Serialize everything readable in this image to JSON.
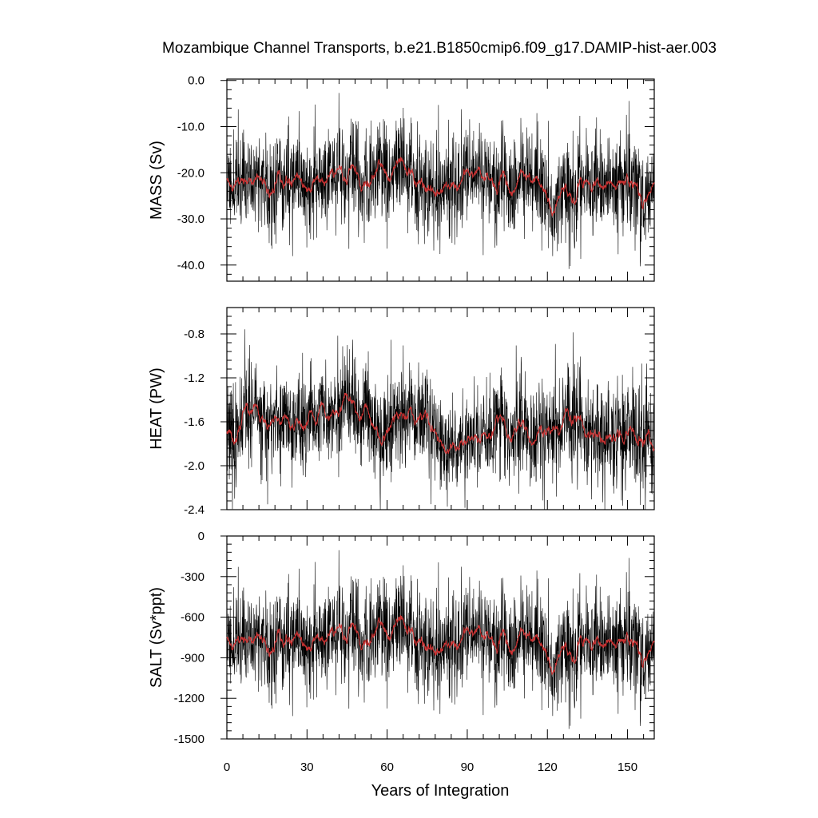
{
  "chart_data": {
    "title": "Mozambique Channel Transports, b.e21.B1850cmip6.f09_g17.DAMIP-hist-aer.003",
    "xlabel": "Years of Integration",
    "xlim": [
      0,
      160
    ],
    "xticks": [
      0,
      30,
      60,
      90,
      120,
      150
    ],
    "xtick_labels": [
      "0",
      "30",
      "60",
      "90",
      "120",
      "150"
    ],
    "line_colors": {
      "monthly": "#000000",
      "smoothed": "#cc3333"
    },
    "panels": [
      {
        "id": "mass",
        "type": "line",
        "ylabel": "MASS (Sv)",
        "ylim": [
          -43.5,
          0.3
        ],
        "yticks": [
          0,
          -10,
          -20,
          -30,
          -40
        ],
        "ytick_labels": [
          "0.0",
          "-10.0",
          "-20.0",
          "-30.0",
          "-40.0"
        ],
        "baseline": -21.6,
        "trend_end": -24.0,
        "amplitude": 6.2,
        "min": -43.0,
        "max": 0.0,
        "seed": 11
      },
      {
        "id": "heat",
        "type": "line",
        "ylabel": "HEAT (PW)",
        "ylim": [
          -2.4,
          -0.56
        ],
        "yticks": [
          -0.8,
          -1.2,
          -1.6,
          -2.0,
          -2.4
        ],
        "ytick_labels": [
          "-0.8",
          "-1.2",
          "-1.6",
          "-2.0",
          "-2.4"
        ],
        "baseline": -1.66,
        "trend_end": -1.74,
        "amplitude": 0.26,
        "min": -2.4,
        "max": -0.56,
        "seed": 23
      },
      {
        "id": "salt",
        "type": "line",
        "ylabel": "SALT (Sv*ppt)",
        "ylim": [
          -1500,
          0
        ],
        "yticks": [
          0,
          -300,
          -600,
          -900,
          -1200,
          -1500
        ],
        "ytick_labels": [
          "0",
          "-300",
          "-600",
          "-900",
          "-1200",
          "-1500"
        ],
        "baseline": -760,
        "trend_end": -840,
        "amplitude": 215,
        "min": -1500,
        "max": 0,
        "seed": 11
      }
    ]
  }
}
